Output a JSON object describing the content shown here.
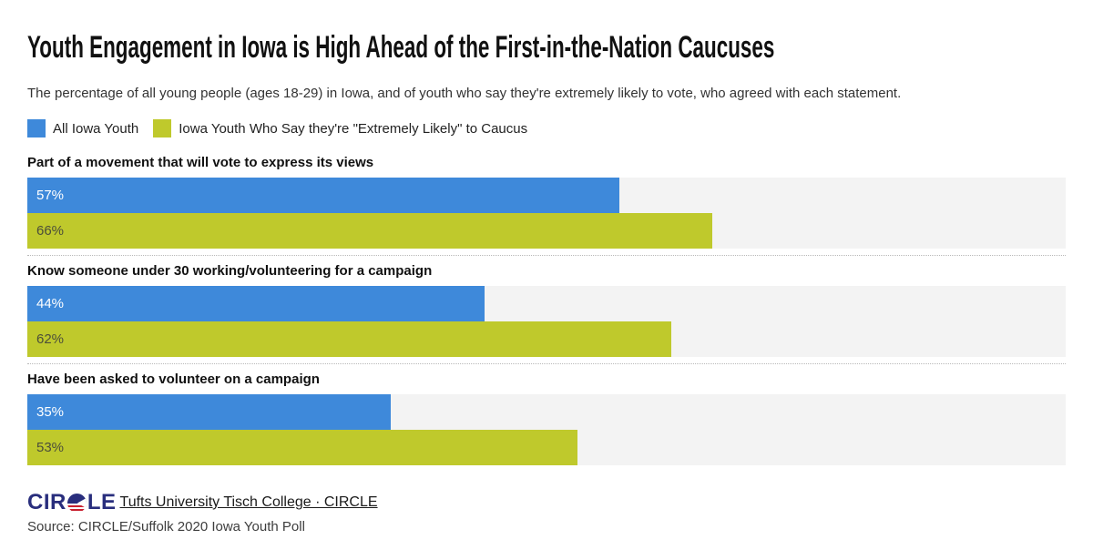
{
  "page": {
    "background": "#ffffff"
  },
  "header": {
    "title": "Youth Engagement in Iowa is High Ahead of the First-in-the-Nation Caucuses",
    "subtitle": "The percentage of all young people (ages 18-29) in Iowa, and of youth who say they're extremely likely to vote, who agreed with each statement."
  },
  "legend": [
    {
      "label": "All Iowa Youth",
      "color": "#3e89da"
    },
    {
      "label": "Iowa Youth Who Say they're \"Extremely Likely\" to Caucus",
      "color": "#bfc92c"
    }
  ],
  "chart_data": {
    "type": "bar",
    "orientation": "horizontal",
    "categories": [
      "Part of a movement that will vote to express its views",
      "Know someone under 30 working/volunteering for a campaign",
      "Have been asked to volunteer on a campaign"
    ],
    "series": [
      {
        "name": "All Iowa Youth",
        "color": "#3e89da",
        "label_color": "#ffffff",
        "values": [
          57,
          44,
          35
        ]
      },
      {
        "name": "Iowa Youth Who Say they're \"Extremely Likely\" to Caucus",
        "color": "#bfc92c",
        "label_color": "#4c4e3a",
        "values": [
          66,
          62,
          53
        ]
      }
    ],
    "value_suffix": "%",
    "xlim": [
      0,
      100
    ],
    "track_color": "#f3f3f3",
    "grid": false,
    "legend_position": "top"
  },
  "footer": {
    "logo_text_left": "CIR",
    "logo_text_right": "LE",
    "logo_icon": "circle-flag-icon",
    "logo_color": "#292e7d",
    "logo_red": "#c8202f",
    "link_label": "Tufts University Tisch College · CIRCLE",
    "source": "Source: CIRCLE/Suffolk 2020 Iowa Youth Poll"
  }
}
